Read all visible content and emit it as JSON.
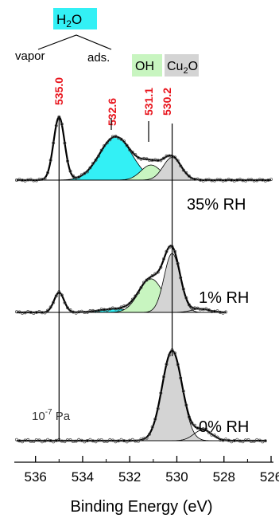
{
  "chart_data": {
    "type": "line",
    "xlabel": "Binding Energy (eV)",
    "xlim": [
      536.9,
      525.9
    ],
    "x_reversed": true,
    "x_ticks": [
      "536",
      "534",
      "532",
      "530",
      "528",
      "526"
    ],
    "x_tick_values": [
      536,
      534,
      532,
      530,
      528,
      526
    ],
    "panels": [
      {
        "label": "35% RH",
        "baseline": 0.0,
        "components": [
          {
            "name": "H2O vapor",
            "center": 535.0,
            "fwhm": 0.55,
            "height": 1.0,
            "color": "#ffffff"
          },
          {
            "name": "H2O ads.",
            "center": 532.6,
            "fwhm": 1.6,
            "height": 0.69,
            "color": "#33f0f5"
          },
          {
            "name": "OH",
            "center": 531.1,
            "fwhm": 1.0,
            "height": 0.24,
            "color": "#c8f5c0"
          },
          {
            "name": "Cu2O",
            "center": 530.2,
            "fwhm": 0.9,
            "height": 0.36,
            "color": "#d4d4d4"
          }
        ]
      },
      {
        "label": "1% RH",
        "baseline": 0.0,
        "components": [
          {
            "name": "H2O vapor",
            "center": 535.0,
            "fwhm": 0.5,
            "height": 0.29,
            "color": "#ffffff"
          },
          {
            "name": "H2O ads.",
            "center": 532.6,
            "fwhm": 1.6,
            "height": 0.05,
            "color": "#33f0f5"
          },
          {
            "name": "OH",
            "center": 531.1,
            "fwhm": 1.2,
            "height": 0.49,
            "color": "#c8f5c0"
          },
          {
            "name": "Cu2O",
            "center": 530.2,
            "fwhm": 0.8,
            "height": 0.86,
            "color": "#d4d4d4"
          },
          {
            "name": "",
            "center": 529.0,
            "fwhm": 0.9,
            "height": 0.05,
            "color": "#ffffff"
          }
        ]
      },
      {
        "label": "0% RH",
        "baseline": 0.0,
        "components": [
          {
            "name": "Cu2O",
            "center": 530.2,
            "fwhm": 1.0,
            "height": 1.0,
            "color": "#d4d4d4"
          },
          {
            "name": "",
            "center": 528.9,
            "fwhm": 0.9,
            "height": 0.12,
            "color": "#ffffff"
          }
        ]
      }
    ],
    "peak_labels": [
      "535.0",
      "532.6",
      "531.1",
      "530.2"
    ],
    "peak_label_color": "#e8141c",
    "reference_lines": [
      535.0,
      530.2
    ],
    "annotations": {
      "h2o_label": "H2O",
      "vapor_label": "vapor",
      "ads_label": "ads.",
      "oh_label": "OH",
      "cu2o_label": "Cu2O",
      "pressure_label": "10-7 Pa"
    }
  }
}
